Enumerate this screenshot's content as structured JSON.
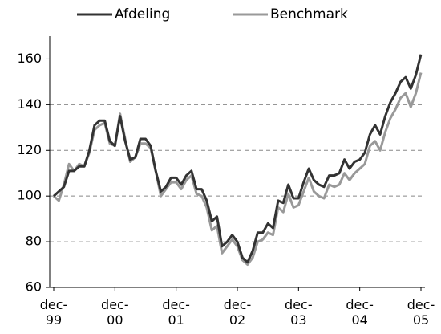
{
  "chart_data": {
    "type": "line",
    "categories": [
      "dec-99",
      null,
      null,
      null,
      null,
      null,
      null,
      null,
      null,
      null,
      null,
      null,
      "dec-00",
      null,
      null,
      null,
      null,
      null,
      null,
      null,
      null,
      null,
      null,
      null,
      "dec-01",
      null,
      null,
      null,
      null,
      null,
      null,
      null,
      null,
      null,
      null,
      null,
      "dec-02",
      null,
      null,
      null,
      null,
      null,
      null,
      null,
      null,
      null,
      null,
      null,
      "dec-03",
      null,
      null,
      null,
      null,
      null,
      null,
      null,
      null,
      null,
      null,
      null,
      "dec-04",
      null,
      null,
      null,
      null,
      null,
      null,
      null,
      null,
      null,
      null,
      null,
      "dec-05"
    ],
    "series": [
      {
        "name": "Afdeling",
        "color": "#333333",
        "values": [
          100,
          102,
          104,
          111,
          111,
          113,
          113,
          120,
          131,
          133,
          133,
          124,
          122,
          135,
          124,
          116,
          117,
          125,
          125,
          122,
          111,
          102,
          104,
          108,
          108,
          105,
          109,
          111,
          103,
          103,
          98,
          89,
          91,
          78,
          80,
          83,
          80,
          73,
          71,
          76,
          84,
          84,
          88,
          86,
          98,
          97,
          105,
          99,
          99,
          106,
          112,
          107,
          105,
          104,
          109,
          109,
          110,
          116,
          112,
          115,
          116,
          119,
          127,
          131,
          127,
          135,
          141,
          145,
          150,
          152,
          147,
          153,
          162
        ]
      },
      {
        "name": "Benchmark",
        "color": "#999999",
        "values": [
          100,
          98,
          105,
          114,
          111,
          114,
          113,
          119,
          129,
          131,
          132,
          123,
          122,
          136,
          125,
          115,
          117,
          123,
          123,
          121,
          111,
          100,
          103,
          106,
          106,
          103,
          107,
          109,
          101,
          100,
          95,
          85,
          87,
          75,
          78,
          81,
          78,
          72,
          70,
          73,
          80,
          81,
          84,
          83,
          95,
          93,
          101,
          95,
          96,
          102,
          108,
          102,
          100,
          99,
          105,
          104,
          105,
          110,
          107,
          110,
          112,
          114,
          122,
          124,
          120,
          128,
          134,
          138,
          143,
          145,
          139,
          145,
          154
        ]
      }
    ],
    "ylim": [
      60,
      170
    ],
    "yticks": [
      60,
      80,
      100,
      120,
      140,
      160
    ],
    "grid": true
  }
}
